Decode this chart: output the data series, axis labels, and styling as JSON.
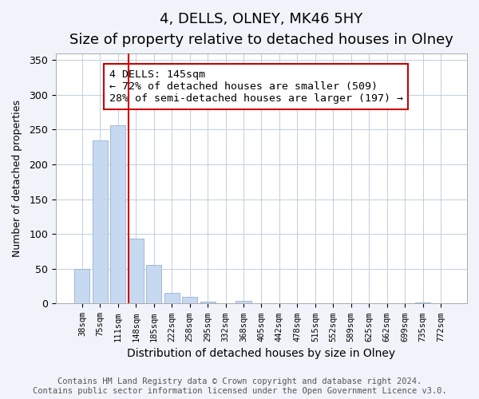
{
  "title": "4, DELLS, OLNEY, MK46 5HY",
  "subtitle": "Size of property relative to detached houses in Olney",
  "xlabel": "Distribution of detached houses by size in Olney",
  "ylabel": "Number of detached properties",
  "bar_labels": [
    "38sqm",
    "75sqm",
    "111sqm",
    "148sqm",
    "185sqm",
    "222sqm",
    "258sqm",
    "295sqm",
    "332sqm",
    "368sqm",
    "405sqm",
    "442sqm",
    "478sqm",
    "515sqm",
    "552sqm",
    "589sqm",
    "625sqm",
    "662sqm",
    "699sqm",
    "735sqm",
    "772sqm"
  ],
  "bar_values": [
    50,
    235,
    256,
    93,
    55,
    15,
    10,
    3,
    0,
    4,
    0,
    0,
    0,
    0,
    0,
    0,
    0,
    0,
    0,
    2,
    0
  ],
  "bar_color": "#c7d9f0",
  "bar_edge_color": "#a0b8d8",
  "vline_color": "#cc0000",
  "vline_position": 2.575,
  "annotation_box_text": "4 DELLS: 145sqm\n← 72% of detached houses are smaller (509)\n28% of semi-detached houses are larger (197) →",
  "ylim": [
    0,
    360
  ],
  "yticks": [
    0,
    50,
    100,
    150,
    200,
    250,
    300,
    350
  ],
  "footer_text": "Contains HM Land Registry data © Crown copyright and database right 2024.\nContains public sector information licensed under the Open Government Licence v3.0.",
  "bg_color": "#f0f4fa",
  "plot_bg_color": "#ffffff",
  "title_fontsize": 13,
  "annotation_fontsize": 9.5,
  "footer_fontsize": 7.5
}
